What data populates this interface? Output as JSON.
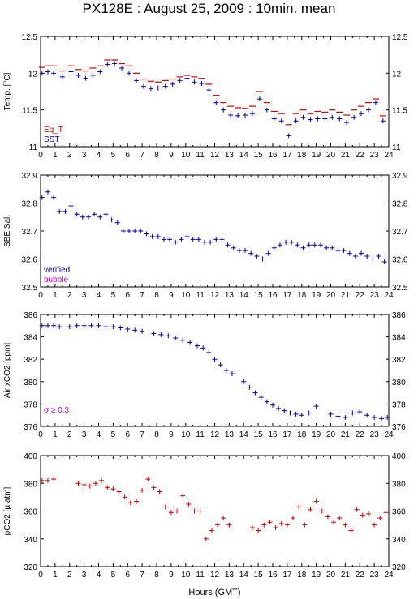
{
  "title": "PX128E : August 25, 2009 : 10min. mean",
  "xlabel": "Hours (GMT)",
  "chart_data": [
    {
      "type": "scatter",
      "ylabel": "Temp. [°C]",
      "xlim": [
        0,
        24
      ],
      "ylim": [
        11,
        12.5
      ],
      "xticks": [
        "0",
        "1",
        "2",
        "3",
        "4",
        "5",
        "6",
        "7",
        "8",
        "9",
        "10",
        "11",
        "12",
        "13",
        "14",
        "15",
        "16",
        "17",
        "18",
        "19",
        "20",
        "21",
        "22",
        "23",
        "24"
      ],
      "yticks": [
        "11",
        "11.5",
        "12",
        "12.5"
      ],
      "legend": [
        {
          "name": "Eq_T",
          "color": "#cc0000"
        },
        {
          "name": "SST",
          "color": "#0000aa"
        }
      ],
      "legend_position": "bottom-left",
      "series": [
        {
          "name": "Eq_T",
          "color": "#cc0000",
          "marker": "dash",
          "x": [
            0.1,
            0.5,
            0.9,
            1.5,
            2.1,
            2.6,
            3.1,
            3.6,
            4.1,
            4.6,
            5.1,
            5.6,
            6.1,
            6.6,
            7.1,
            7.6,
            8.1,
            8.6,
            9.1,
            9.6,
            10.1,
            10.6,
            11.1,
            11.6,
            12.1,
            12.6,
            13.1,
            13.6,
            14.1,
            14.6,
            15.1,
            15.6,
            16.1,
            16.6,
            17.1,
            17.6,
            18.1,
            18.6,
            19.1,
            19.6,
            20.1,
            20.6,
            21.1,
            21.6,
            22.1,
            22.6,
            23.1,
            23.6
          ],
          "y": [
            12.08,
            12.1,
            12.1,
            12.03,
            12.1,
            12.05,
            12.03,
            12.07,
            12.1,
            12.18,
            12.18,
            12.13,
            12.1,
            12.0,
            11.92,
            11.89,
            11.88,
            11.9,
            11.92,
            11.95,
            11.97,
            11.95,
            11.93,
            11.85,
            11.7,
            11.6,
            11.55,
            11.53,
            11.52,
            11.55,
            11.75,
            11.6,
            11.48,
            11.45,
            11.3,
            11.45,
            11.5,
            11.45,
            11.48,
            11.47,
            11.5,
            11.47,
            11.43,
            11.5,
            11.55,
            11.6,
            11.65,
            11.42
          ]
        },
        {
          "name": "SST",
          "color": "#0000aa",
          "marker": "plus",
          "x": [
            0.1,
            0.5,
            0.9,
            1.5,
            2.1,
            2.6,
            3.1,
            3.6,
            4.1,
            4.6,
            5.1,
            5.6,
            6.1,
            6.6,
            7.1,
            7.6,
            8.1,
            8.6,
            9.1,
            9.6,
            10.1,
            10.6,
            11.1,
            11.6,
            12.1,
            12.6,
            13.1,
            13.6,
            14.1,
            14.6,
            15.1,
            15.6,
            16.1,
            16.6,
            17.1,
            17.6,
            18.1,
            18.6,
            19.1,
            19.6,
            20.1,
            20.6,
            21.1,
            21.6,
            22.1,
            22.6,
            23.1,
            23.6
          ],
          "y": [
            12.0,
            12.02,
            12.0,
            11.95,
            12.02,
            11.97,
            11.93,
            11.97,
            12.02,
            12.12,
            12.13,
            12.07,
            12.0,
            11.9,
            11.82,
            11.79,
            11.8,
            11.82,
            11.85,
            11.9,
            11.93,
            11.88,
            11.86,
            11.77,
            11.6,
            11.5,
            11.43,
            11.42,
            11.43,
            11.45,
            11.65,
            11.5,
            11.38,
            11.35,
            11.15,
            11.35,
            11.4,
            11.37,
            11.38,
            11.38,
            11.4,
            11.38,
            11.33,
            11.4,
            11.45,
            11.5,
            11.6,
            11.35
          ]
        }
      ]
    },
    {
      "type": "scatter",
      "ylabel": "SBE Sal.",
      "xlim": [
        0,
        24
      ],
      "ylim": [
        32.5,
        32.9
      ],
      "xticks": [
        "0",
        "1",
        "2",
        "3",
        "4",
        "5",
        "6",
        "7",
        "8",
        "9",
        "10",
        "11",
        "12",
        "13",
        "14",
        "15",
        "16",
        "17",
        "18",
        "19",
        "20",
        "21",
        "22",
        "23",
        "24"
      ],
      "yticks": [
        "32.5",
        "32.6",
        "32.7",
        "32.8",
        "32.9"
      ],
      "legend": [
        {
          "name": "verified",
          "color": "#0000aa"
        },
        {
          "name": "bubble",
          "color": "#cc00cc"
        }
      ],
      "legend_position": "bottom-left",
      "series": [
        {
          "name": "verified",
          "color": "#0000aa",
          "marker": "plus",
          "x": [
            0.1,
            0.5,
            0.9,
            1.3,
            1.7,
            2.1,
            2.5,
            2.9,
            3.3,
            3.7,
            4.1,
            4.5,
            4.9,
            5.3,
            5.7,
            6.1,
            6.5,
            6.9,
            7.3,
            7.7,
            8.1,
            8.5,
            8.9,
            9.3,
            9.7,
            10.1,
            10.5,
            10.9,
            11.3,
            11.7,
            12.1,
            12.5,
            12.9,
            13.3,
            13.7,
            14.1,
            14.5,
            14.9,
            15.3,
            15.7,
            16.1,
            16.5,
            16.9,
            17.3,
            17.7,
            18.1,
            18.5,
            18.9,
            19.3,
            19.7,
            20.1,
            20.5,
            20.9,
            21.3,
            21.7,
            22.1,
            22.5,
            22.9,
            23.3,
            23.7
          ],
          "y": [
            32.82,
            32.84,
            32.82,
            32.77,
            32.77,
            32.79,
            32.76,
            32.75,
            32.75,
            32.76,
            32.75,
            32.76,
            32.74,
            32.73,
            32.7,
            32.7,
            32.7,
            32.7,
            32.69,
            32.68,
            32.68,
            32.67,
            32.67,
            32.66,
            32.67,
            32.68,
            32.67,
            32.67,
            32.66,
            32.66,
            32.67,
            32.67,
            32.65,
            32.64,
            32.63,
            32.63,
            32.62,
            32.61,
            32.6,
            32.62,
            32.64,
            32.65,
            32.66,
            32.66,
            32.65,
            32.64,
            32.65,
            32.65,
            32.65,
            32.64,
            32.64,
            32.63,
            32.63,
            32.62,
            32.61,
            32.62,
            32.61,
            32.6,
            32.61,
            32.59
          ]
        },
        {
          "name": "bubble",
          "color": "#cc00cc",
          "marker": "plus",
          "x": [],
          "y": []
        }
      ]
    },
    {
      "type": "scatter",
      "ylabel": "Air xCO2 [ppm]",
      "xlim": [
        0,
        24
      ],
      "ylim": [
        376,
        386
      ],
      "xticks": [
        "0",
        "1",
        "2",
        "3",
        "4",
        "5",
        "6",
        "7",
        "8",
        "9",
        "10",
        "11",
        "12",
        "13",
        "14",
        "15",
        "16",
        "17",
        "18",
        "19",
        "20",
        "21",
        "22",
        "23",
        "24"
      ],
      "yticks": [
        "376",
        "378",
        "380",
        "382",
        "384",
        "386"
      ],
      "annotation": {
        "text": "σ ≥ 0.3",
        "color": "#cc00cc",
        "position": "bottom-left"
      },
      "series": [
        {
          "name": "Air xCO2",
          "color": "#0000aa",
          "marker": "plus",
          "x": [
            0.1,
            0.5,
            0.9,
            1.3,
            2.0,
            2.5,
            3.0,
            3.5,
            4.0,
            4.5,
            5.0,
            5.5,
            6.0,
            6.5,
            7.0,
            7.8,
            8.3,
            8.8,
            9.3,
            9.8,
            10.3,
            10.8,
            11.2,
            11.6,
            12.0,
            12.4,
            12.8,
            13.2,
            14.0,
            14.4,
            14.8,
            15.2,
            15.6,
            16.0,
            16.4,
            16.8,
            17.2,
            17.6,
            18.0,
            18.5,
            19.0,
            20.0,
            20.5,
            21.0,
            21.5,
            22.0,
            22.5,
            23.0,
            23.5,
            23.9
          ],
          "y": [
            385.0,
            385.0,
            385.0,
            384.9,
            384.9,
            385.0,
            385.0,
            385.0,
            385.0,
            384.9,
            384.9,
            384.8,
            384.7,
            384.6,
            384.5,
            384.3,
            384.2,
            384.1,
            383.9,
            383.7,
            383.5,
            383.2,
            383.0,
            382.6,
            382.0,
            381.5,
            381.0,
            380.7,
            380.0,
            379.5,
            379.0,
            378.6,
            378.2,
            377.9,
            377.6,
            377.4,
            377.2,
            377.1,
            377.0,
            377.2,
            377.8,
            377.1,
            376.9,
            376.8,
            377.2,
            377.3,
            377.0,
            376.8,
            376.7,
            376.8
          ]
        }
      ]
    },
    {
      "type": "scatter",
      "ylabel": "pCO2 [µ atm]",
      "xlim": [
        0,
        24
      ],
      "ylim": [
        320,
        400
      ],
      "xticks": [
        "0",
        "1",
        "2",
        "3",
        "4",
        "5",
        "6",
        "7",
        "8",
        "9",
        "10",
        "11",
        "12",
        "13",
        "14",
        "15",
        "16",
        "17",
        "18",
        "19",
        "20",
        "21",
        "22",
        "23",
        "24"
      ],
      "yticks": [
        "320",
        "340",
        "360",
        "380",
        "400"
      ],
      "series": [
        {
          "name": "pCO2",
          "color": "#cc0000",
          "marker": "plus",
          "x": [
            0.1,
            0.5,
            0.9,
            2.6,
            3.0,
            3.4,
            3.8,
            4.2,
            4.6,
            5.0,
            5.4,
            5.8,
            6.2,
            6.6,
            7.0,
            7.4,
            7.8,
            8.2,
            8.6,
            9.0,
            9.4,
            9.8,
            10.2,
            10.6,
            11.0,
            11.4,
            11.8,
            12.2,
            12.6,
            13.0,
            14.6,
            15.0,
            15.4,
            15.8,
            16.2,
            16.6,
            17.0,
            17.4,
            17.8,
            18.2,
            18.6,
            19.0,
            19.4,
            19.8,
            20.2,
            20.6,
            21.0,
            21.4,
            21.8,
            22.2,
            22.6,
            23.0,
            23.4,
            23.8
          ],
          "y": [
            382,
            382,
            383,
            380,
            379,
            378,
            380,
            382,
            377,
            376,
            374,
            370,
            366,
            367,
            375,
            383,
            377,
            374,
            363,
            359,
            360,
            371,
            365,
            360,
            360,
            340,
            346,
            350,
            355,
            350,
            348,
            346,
            350,
            352,
            348,
            351,
            350,
            355,
            363,
            350,
            361,
            367,
            360,
            356,
            352,
            355,
            350,
            346,
            361,
            357,
            358,
            350,
            355,
            359
          ]
        }
      ]
    }
  ]
}
